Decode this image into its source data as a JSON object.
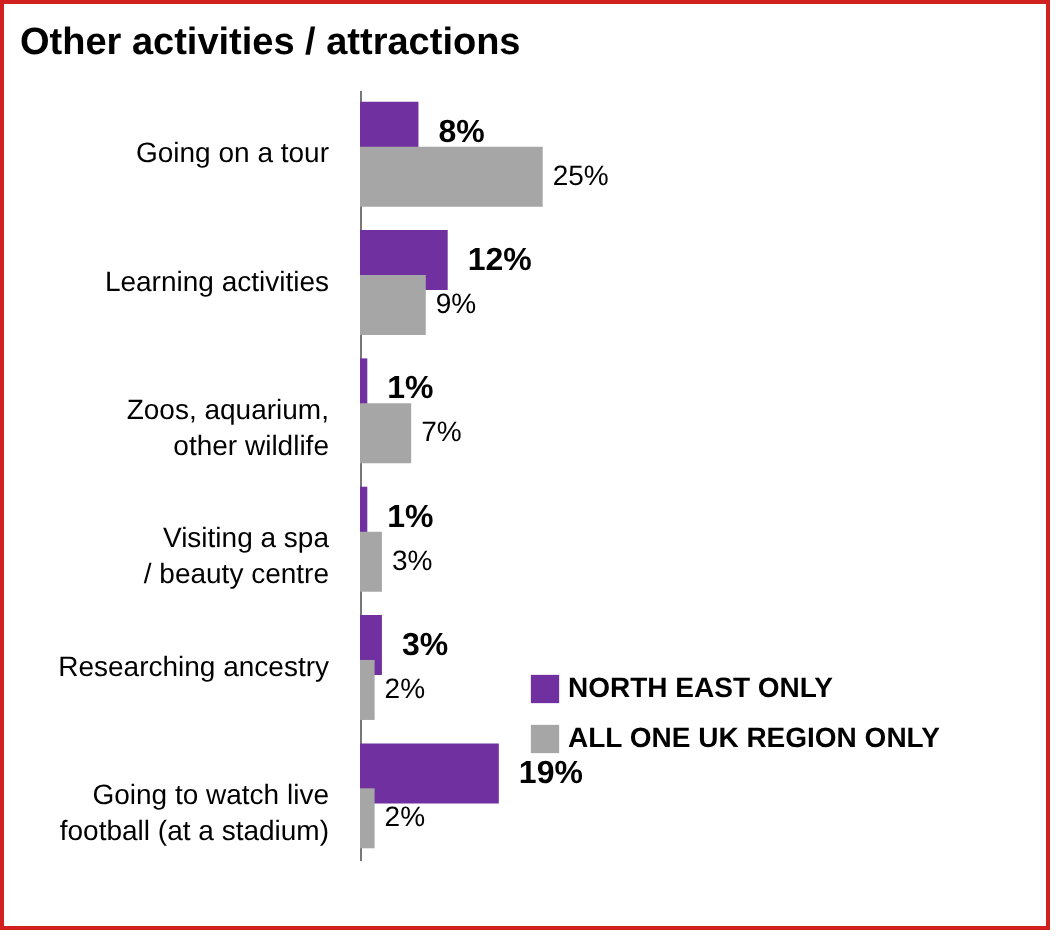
{
  "chart_data": {
    "type": "bar",
    "orientation": "horizontal",
    "title": "Other activities / attractions",
    "categories": [
      "Going on a tour",
      "Learning activities",
      "Zoos, aquarium,\nother wildlife",
      "Visiting a spa\n/ beauty centre",
      "Researching ancestry",
      "Going to watch live\nfootball (at a stadium)"
    ],
    "series": [
      {
        "name": "NORTH EAST ONLY",
        "color": "#7030a0",
        "values": [
          8,
          12,
          1,
          1,
          3,
          19
        ],
        "value_labels": [
          "8%",
          "12%",
          "1%",
          "1%",
          "3%",
          "19%"
        ]
      },
      {
        "name": "ALL ONE UK REGION ONLY",
        "color": "#a6a6a6",
        "values": [
          25,
          9,
          7,
          3,
          2,
          2
        ],
        "value_labels": [
          "25%",
          "9%",
          "7%",
          "3%",
          "2%",
          "2%"
        ]
      }
    ],
    "tick_labels": "y",
    "grid": false,
    "legend": "bottom right"
  }
}
